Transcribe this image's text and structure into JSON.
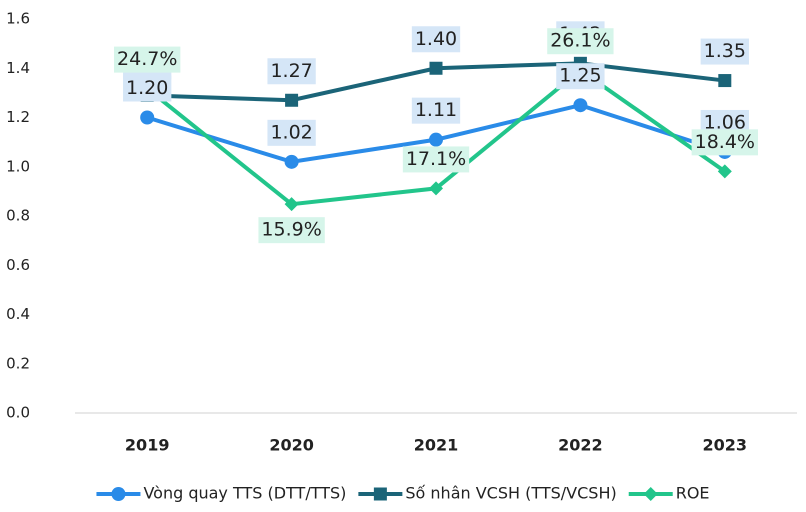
{
  "chart_data": {
    "type": "line",
    "categories": [
      "2019",
      "2020",
      "2021",
      "2022",
      "2023"
    ],
    "series": [
      {
        "name": "Vòng quay TTS (DTT/TTS)",
        "color": "#2a8be8",
        "marker": "circle",
        "values": [
          1.2,
          1.02,
          1.11,
          1.25,
          1.06
        ],
        "value_labels": [
          "1.20",
          "1.02",
          "1.11",
          "1.25",
          "1.06"
        ]
      },
      {
        "name": "Số nhân VCSH (TTS/VCSH)",
        "color": "#1b6478",
        "marker": "square",
        "values": [
          1.29,
          1.27,
          1.4,
          1.42,
          1.35
        ],
        "value_labels": [
          "1.29",
          "1.27",
          "1.40",
          "1.42",
          "1.35"
        ]
      },
      {
        "name": "ROE",
        "color": "#22c58b",
        "marker": "diamond",
        "axis": "y2",
        "values": [
          24.7,
          15.9,
          17.1,
          26.1,
          18.4
        ],
        "value_labels": [
          "24.7%",
          "15.9%",
          "17.1%",
          "26.1%",
          "18.4%"
        ]
      }
    ],
    "ylim": [
      0,
      1.6
    ],
    "yticks": [
      {
        "value": 0,
        "label": "0.0"
      },
      0.2,
      0.4,
      0.6,
      0.8,
      {
        "value": 1,
        "label": "1.0"
      },
      1.2,
      1.4,
      1.6
    ],
    "y2lim": [
      0,
      30
    ],
    "grid": false,
    "legend": "bottom"
  }
}
